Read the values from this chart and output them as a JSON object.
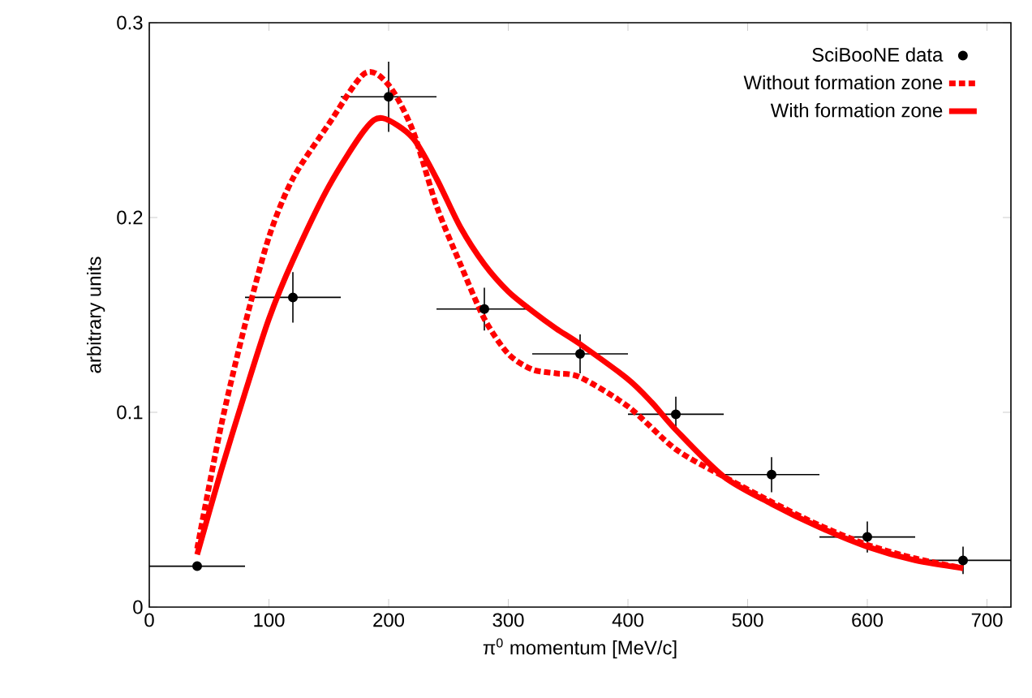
{
  "chart_data": {
    "type": "line",
    "xlabel": "π$^{0}$ momentum [MeV/c]",
    "ylabel": "arbitrary units",
    "xlim": [
      0,
      720
    ],
    "ylim": [
      0,
      0.3
    ],
    "xticks": [
      0,
      100,
      200,
      300,
      400,
      500,
      600,
      700
    ],
    "yticks": [
      0,
      0.1,
      0.2,
      0.3
    ],
    "grid": false,
    "legend": "top right",
    "series": [
      {
        "name": "SciBooNE data",
        "type": "scatter",
        "marker": "circle",
        "color": "#000000",
        "x": [
          40,
          120,
          200,
          280,
          360,
          440,
          520,
          600,
          680
        ],
        "values": [
          0.021,
          0.159,
          0.262,
          0.153,
          0.13,
          0.099,
          0.068,
          0.036,
          0.024
        ],
        "errors": [
          0.002,
          0.013,
          0.018,
          0.011,
          0.01,
          0.009,
          0.009,
          0.008,
          0.007
        ],
        "xerrors": [
          40,
          40,
          40,
          40,
          40,
          40,
          40,
          40,
          40
        ]
      },
      {
        "name": "Without formation zone",
        "line_style": "dashed",
        "color": "#ff0000",
        "x": [
          40,
          60,
          80,
          100,
          120,
          150,
          180,
          200,
          220,
          240,
          260,
          280,
          300,
          320,
          340,
          360,
          400,
          440,
          480,
          520,
          560,
          600,
          640,
          680
        ],
        "values": [
          0.03,
          0.093,
          0.145,
          0.19,
          0.22,
          0.248,
          0.274,
          0.268,
          0.245,
          0.206,
          0.176,
          0.148,
          0.13,
          0.122,
          0.12,
          0.118,
          0.103,
          0.081,
          0.067,
          0.054,
          0.042,
          0.032,
          0.025,
          0.02
        ]
      },
      {
        "name": "With formation zone",
        "line_style": "solid",
        "color": "#ff0000",
        "x": [
          40,
          60,
          80,
          100,
          120,
          150,
          180,
          195,
          220,
          240,
          260,
          280,
          300,
          320,
          340,
          360,
          400,
          420,
          440,
          480,
          520,
          560,
          600,
          640,
          680
        ],
        "values": [
          0.027,
          0.07,
          0.11,
          0.148,
          0.178,
          0.216,
          0.245,
          0.251,
          0.241,
          0.22,
          0.195,
          0.176,
          0.162,
          0.152,
          0.143,
          0.135,
          0.117,
          0.105,
          0.091,
          0.067,
          0.053,
          0.041,
          0.031,
          0.024,
          0.02
        ]
      }
    ]
  }
}
